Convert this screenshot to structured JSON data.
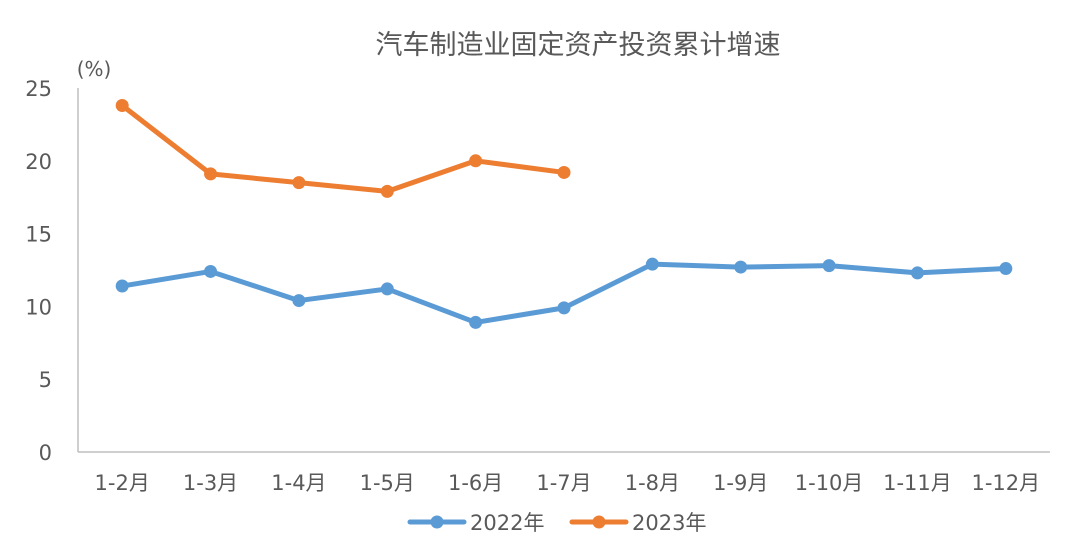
{
  "chart_data": {
    "type": "line",
    "title": "汽车制造业固定资产投资累计增速",
    "ylabel": "(%)",
    "xlabel": "",
    "categories": [
      "1-2月",
      "1-3月",
      "1-4月",
      "1-5月",
      "1-6月",
      "1-7月",
      "1-8月",
      "1-9月",
      "1-10月",
      "1-11月",
      "1-12月"
    ],
    "yticks": [
      "0",
      "5",
      "10",
      "15",
      "20",
      "25"
    ],
    "ylim": [
      0,
      25
    ],
    "grid": false,
    "legend_position": "bottom",
    "series": [
      {
        "name": "2022年",
        "color": "#5B9BD5",
        "values": [
          11.4,
          12.4,
          10.4,
          11.2,
          8.9,
          9.9,
          12.9,
          12.7,
          12.8,
          12.3,
          12.6
        ]
      },
      {
        "name": "2023年",
        "color": "#ED7D31",
        "values": [
          23.8,
          19.1,
          18.5,
          17.9,
          20.0,
          19.2,
          null,
          null,
          null,
          null,
          null
        ]
      }
    ]
  }
}
